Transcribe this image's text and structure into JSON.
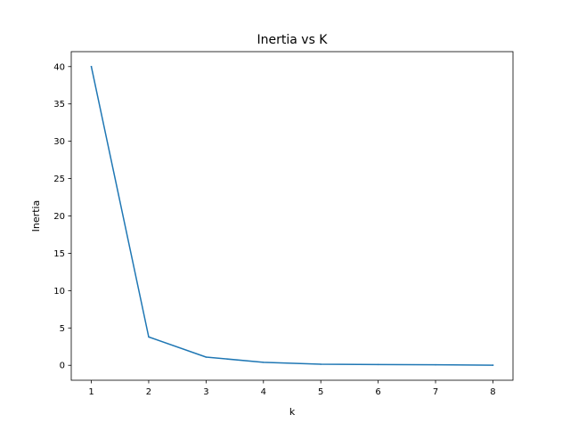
{
  "chart_data": {
    "type": "line",
    "title": "Inertia vs K",
    "xlabel": "k",
    "ylabel": "Inertia",
    "xlim": [
      0.65,
      8.35
    ],
    "ylim": [
      -2.0,
      42.0
    ],
    "x_ticks": [
      1,
      2,
      3,
      4,
      5,
      6,
      7,
      8
    ],
    "y_ticks": [
      0,
      5,
      10,
      15,
      20,
      25,
      30,
      35,
      40
    ],
    "grid": false,
    "series": [
      {
        "color": "#1f77b4",
        "x": [
          1,
          2,
          3,
          4,
          5,
          6,
          7,
          8
        ],
        "y": [
          40.0,
          3.8,
          1.1,
          0.4,
          0.15,
          0.1,
          0.07,
          0.02
        ]
      }
    ]
  }
}
